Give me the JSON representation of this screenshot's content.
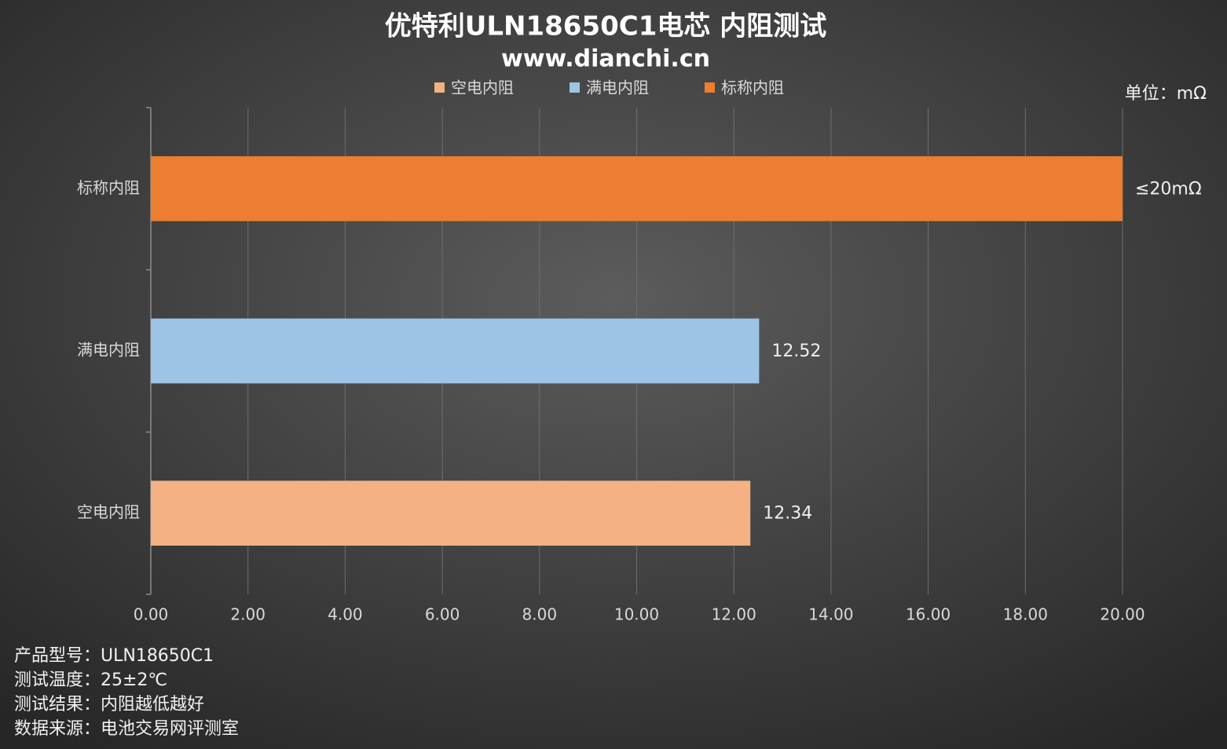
{
  "chart_data": {
    "type": "hbar",
    "title": "优特利ULN18650C1电芯 内阻测试",
    "subtitle": "www.dianchi.cn",
    "unit_label": "单位：mΩ",
    "categories": [
      "空电内阻",
      "满电内阻",
      "标称内阻"
    ],
    "series": [
      {
        "name": "空电内阻",
        "color": "#f4b183",
        "values": [
          12.34,
          null,
          null
        ]
      },
      {
        "name": "满电内阻",
        "color": "#9dc3e6",
        "values": [
          null,
          12.52,
          null
        ]
      },
      {
        "name": "标称内阻",
        "color": "#ed7d31",
        "values": [
          null,
          null,
          20
        ],
        "value_labels": [
          null,
          null,
          "≤20mΩ"
        ]
      }
    ],
    "xlim": [
      0,
      20
    ],
    "xticks": [
      {
        "value": 0,
        "label": "0.00"
      },
      {
        "value": 2,
        "label": "2.00"
      },
      {
        "value": 4,
        "label": "4.00"
      },
      {
        "value": 6,
        "label": "6.00"
      },
      {
        "value": 8,
        "label": "8.00"
      },
      {
        "value": 10,
        "label": "10.00"
      },
      {
        "value": 12,
        "label": "12.00"
      },
      {
        "value": 14,
        "label": "14.00"
      },
      {
        "value": 16,
        "label": "16.00"
      },
      {
        "value": 18,
        "label": "18.00"
      },
      {
        "value": 20,
        "label": "20.00"
      }
    ],
    "grid": true,
    "legend": "top",
    "notes": [
      "产品型号：ULN18650C1",
      "测试温度：25±2℃",
      "测试结果：内阻越低越好",
      "数据来源：电池交易网评测室"
    ]
  }
}
